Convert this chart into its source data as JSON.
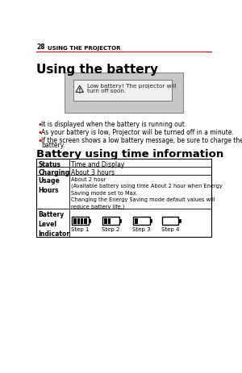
{
  "page_num": "28",
  "page_header": "USING THE PROJECTOR",
  "section1_title": "Using the battery",
  "warning_box_text1": "Low battery! The projector will",
  "warning_box_text2": "turn off soon.",
  "bullet_texts": [
    "It is displayed when the battery is running out.",
    "As your battery is low, Projector will be turned off in a minute.",
    "If the screen shows a low battery message, be sure to charge the"
  ],
  "bullet_cont": "battery.",
  "section2_title": "Battery using time information",
  "step_labels": [
    "Step 1",
    "Step 2",
    "Step 3",
    "Step 4"
  ],
  "fill_levels": [
    4,
    2,
    1,
    0
  ],
  "bg_color": "#ffffff",
  "header_line_color": "#cc0000",
  "table_border_color": "#000000",
  "bullet_color": "#cc0000",
  "text_color": "#000000",
  "gray_box_color": "#c8c8c8",
  "warn_box_color": "#f0f0f0",
  "warn_border_color": "#666666",
  "gray_border_color": "#888888"
}
